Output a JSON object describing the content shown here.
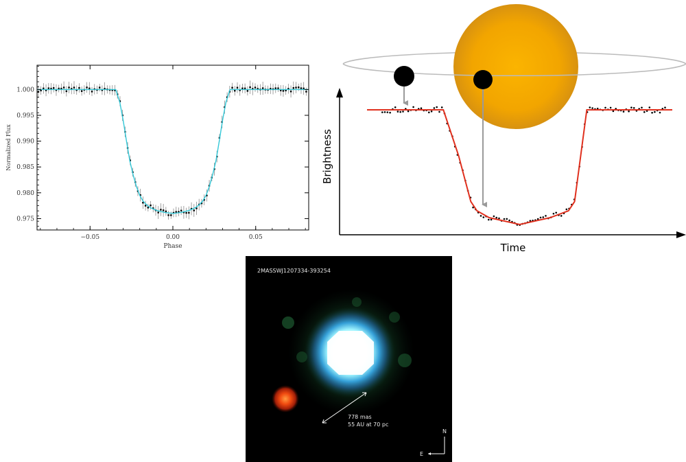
{
  "chart_data": [
    {
      "type": "line",
      "title": "",
      "xlabel": "Phase",
      "ylabel": "Normalized Flux",
      "xlim": [
        -0.082,
        0.082
      ],
      "ylim": [
        0.9728,
        1.0047
      ],
      "x_ticks": [
        -0.05,
        0.0,
        0.05
      ],
      "x_tick_labels": [
        "−0.05",
        "0.00",
        "0.05"
      ],
      "y_ticks": [
        0.975,
        0.98,
        0.985,
        0.99,
        0.995,
        1.0
      ],
      "y_tick_labels": [
        "0.975",
        "0.980",
        "0.985",
        "0.990",
        "0.995",
        "1.000"
      ],
      "grid": false,
      "series": [
        {
          "kind": "model",
          "color": "#33c8d8",
          "x": [
            -0.082,
            -0.0345,
            -0.032,
            -0.03,
            -0.028,
            -0.026,
            -0.024,
            -0.022,
            -0.02,
            -0.018,
            -0.016,
            -0.014,
            -0.012,
            -0.01,
            -0.005,
            0.0,
            0.005,
            0.01,
            0.012,
            0.014,
            0.016,
            0.018,
            0.02,
            0.022,
            0.024,
            0.026,
            0.028,
            0.03,
            0.032,
            0.0345,
            0.082
          ],
          "y": [
            1.0,
            1.0,
            0.9975,
            0.994,
            0.99,
            0.9862,
            0.9835,
            0.9812,
            0.9795,
            0.9784,
            0.9777,
            0.9772,
            0.9769,
            0.9766,
            0.9762,
            0.976,
            0.9762,
            0.9766,
            0.9769,
            0.9772,
            0.9777,
            0.9784,
            0.9795,
            0.9812,
            0.9835,
            0.9862,
            0.99,
            0.994,
            0.9975,
            1.0,
            1.0
          ]
        },
        {
          "kind": "observations",
          "color": "#000000",
          "markers": "points with error bars",
          "x_step": 0.00154,
          "errorbar": 0.001
        }
      ]
    },
    {
      "type": "line",
      "title": "",
      "xlabel": "Time",
      "ylabel": "Brightness",
      "grid": false,
      "axis_ticks": false,
      "series": [
        {
          "kind": "model",
          "color": "#e0301e",
          "x": [
            0.0,
            0.25,
            0.3,
            0.34,
            0.36,
            0.4,
            0.5,
            0.6,
            0.66,
            0.68,
            0.72,
            1.0
          ],
          "y": [
            1.0,
            1.0,
            0.6,
            0.2,
            0.12,
            0.06,
            0.0,
            0.06,
            0.12,
            0.2,
            1.0,
            1.0
          ]
        },
        {
          "kind": "observations",
          "color": "#000000",
          "markers": "points"
        }
      ],
      "illustration": {
        "star_color": "#f6a800",
        "planet_color": "#000000",
        "orbit_color": "#bbbbbb",
        "arrow_color": "#9a9a9a"
      }
    }
  ],
  "image_panel": {
    "target_label": "2MASSWJ1207334-393254",
    "separation_line1": "778 mas",
    "separation_line2": "55 AU at 70 pc",
    "north_label": "N",
    "east_label": "E",
    "background": "#000000"
  }
}
